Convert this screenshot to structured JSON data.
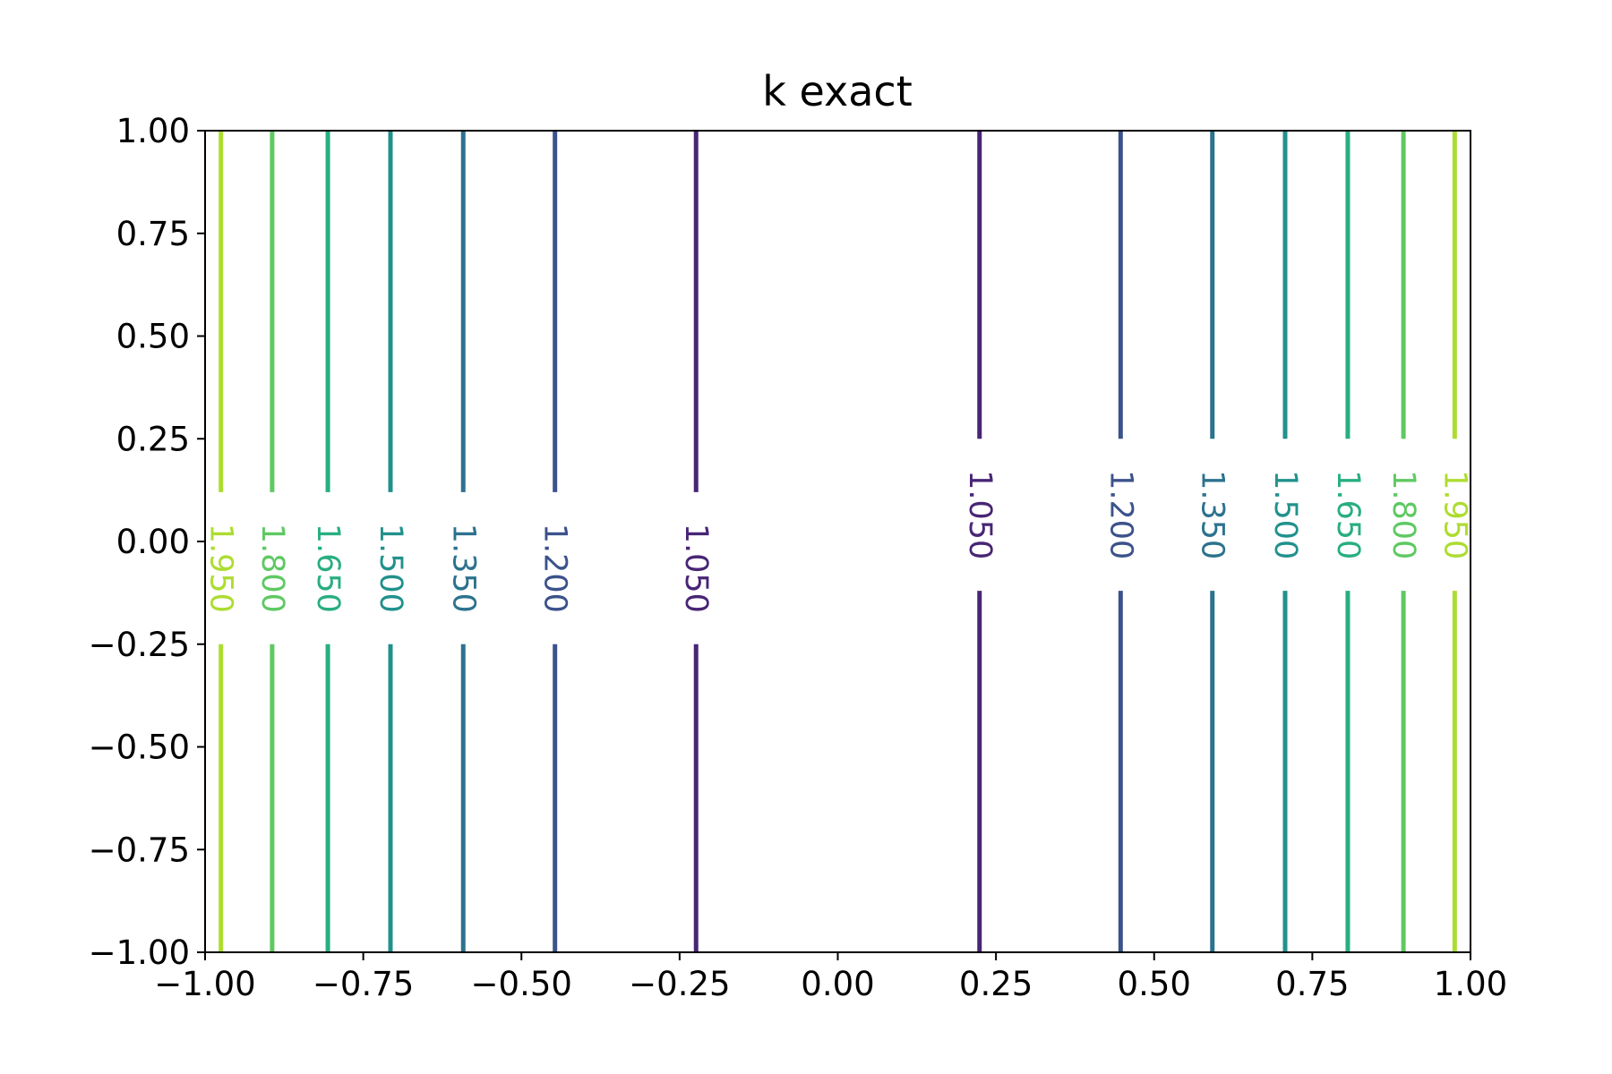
{
  "chart_data": {
    "type": "contour",
    "title": "k exact",
    "xlabel": "",
    "ylabel": "",
    "xlim": [
      -1.0,
      1.0
    ],
    "ylim": [
      -1.0,
      1.0
    ],
    "xticks": [
      "−1.00",
      "−0.75",
      "−0.50",
      "−0.25",
      "0.00",
      "0.25",
      "0.50",
      "0.75",
      "1.00"
    ],
    "yticks": [
      "1.00",
      "0.75",
      "0.50",
      "0.25",
      "0.00",
      "−0.25",
      "−0.50",
      "−0.75",
      "−1.00"
    ],
    "grid": false,
    "levels": [
      {
        "label": "1.050",
        "value": 1.05,
        "color": "#482575",
        "x": [
          -0.224,
          0.224
        ]
      },
      {
        "label": "1.200",
        "value": 1.2,
        "color": "#3b528b",
        "x": [
          -0.447,
          0.447
        ]
      },
      {
        "label": "1.350",
        "value": 1.35,
        "color": "#2c728e",
        "x": [
          -0.592,
          0.592
        ]
      },
      {
        "label": "1.500",
        "value": 1.5,
        "color": "#21918c",
        "x": [
          -0.707,
          0.707
        ]
      },
      {
        "label": "1.650",
        "value": 1.65,
        "color": "#28ae80",
        "x": [
          -0.806,
          0.806
        ]
      },
      {
        "label": "1.800",
        "value": 1.8,
        "color": "#5ec962",
        "x": [
          -0.894,
          0.894
        ]
      },
      {
        "label": "1.950",
        "value": 1.95,
        "color": "#addc30",
        "x": [
          -0.975,
          0.975
        ]
      }
    ]
  }
}
